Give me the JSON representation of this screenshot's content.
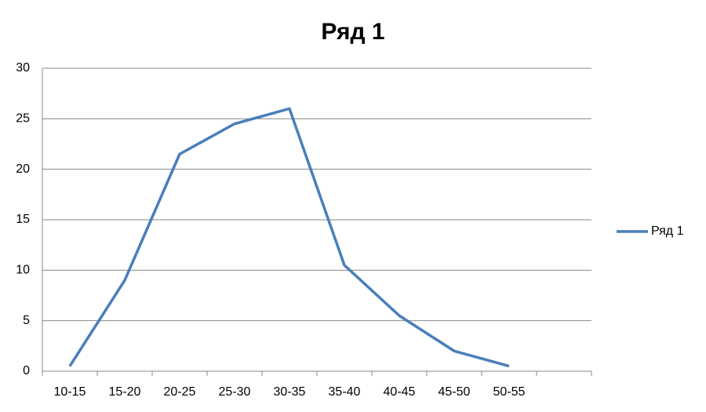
{
  "chart_data": {
    "type": "line",
    "title": "Ряд 1",
    "categories": [
      "10-15",
      "15-20",
      "20-25",
      "25-30",
      "30-35",
      "35-40",
      "40-45",
      "45-50",
      "50-55",
      null
    ],
    "series": [
      {
        "name": "Ряд 1",
        "color": "#4a7ebb",
        "values": [
          0.5,
          9,
          21.5,
          24.5,
          26,
          10.5,
          5.5,
          2,
          0.5,
          null
        ]
      }
    ],
    "ylim": [
      0,
      30
    ],
    "yticks": [
      0,
      5,
      10,
      15,
      20,
      25,
      30
    ],
    "grid": true,
    "legend": "right"
  }
}
